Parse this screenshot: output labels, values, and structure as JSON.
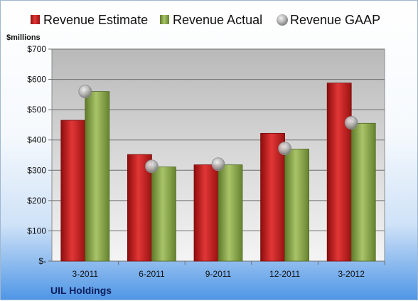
{
  "chart_data": {
    "type": "bar",
    "company": "UIL Holdings",
    "ylabel": "$millions",
    "ylim": [
      0,
      700
    ],
    "ytick_labels": [
      "$-",
      "$100",
      "$200",
      "$300",
      "$400",
      "$500",
      "$600",
      "$700"
    ],
    "categories": [
      "3-2011",
      "6-2011",
      "9-2011",
      "12-2011",
      "3-2012"
    ],
    "series": [
      {
        "name": "Revenue Estimate",
        "values": [
          465,
          352,
          318,
          422,
          588
        ],
        "color": "#cc1f1f",
        "mark": "bar"
      },
      {
        "name": "Revenue Actual",
        "values": [
          560,
          311,
          318,
          370,
          455
        ],
        "color": "#8aa84a",
        "mark": "bar"
      },
      {
        "name": "Revenue GAAP",
        "values": [
          560,
          313,
          320,
          372,
          457
        ],
        "color": "#b8b8b8",
        "mark": "marker"
      }
    ],
    "grid": true,
    "legend": "top"
  }
}
